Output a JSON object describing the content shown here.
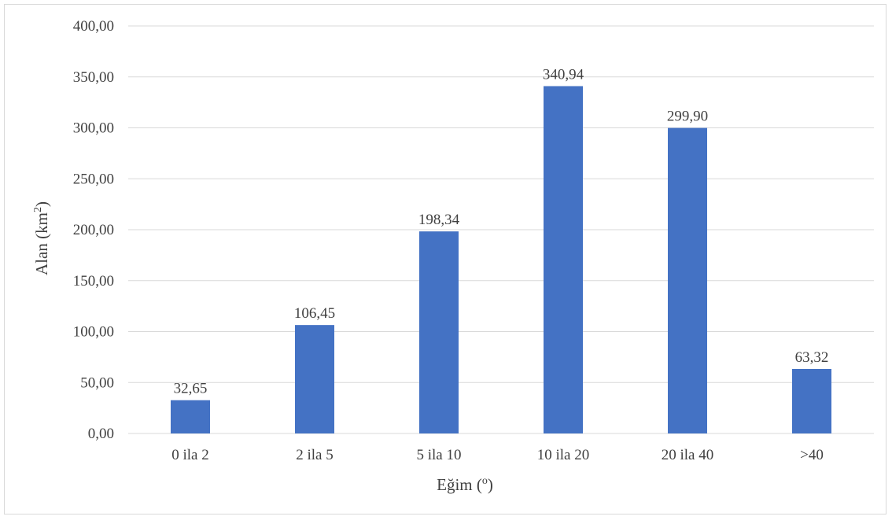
{
  "chart_data": {
    "type": "bar",
    "categories": [
      "0 ila 2",
      "2 ila 5",
      "5 ila 10",
      "10 ila 20",
      "20 ila 40",
      ">40"
    ],
    "values": [
      32.65,
      106.45,
      198.34,
      340.94,
      299.9,
      63.32
    ],
    "data_labels": [
      "32,65",
      "106,45",
      "198,34",
      "340,94",
      "299,90",
      "63,32"
    ],
    "yticks": [
      "0,00",
      "50,00",
      "100,00",
      "150,00",
      "200,00",
      "250,00",
      "300,00",
      "350,00",
      "400,00"
    ],
    "ylim": [
      0,
      400
    ],
    "ytick_step": 50,
    "xlabel": {
      "base": "Eğim (",
      "sup": "o",
      "end": ")"
    },
    "ylabel": {
      "base": "Alan (km",
      "sup": "2",
      "end": ")"
    },
    "grid": true,
    "bar_color": "#4472c4",
    "grid_color": "#d9d9d9"
  }
}
